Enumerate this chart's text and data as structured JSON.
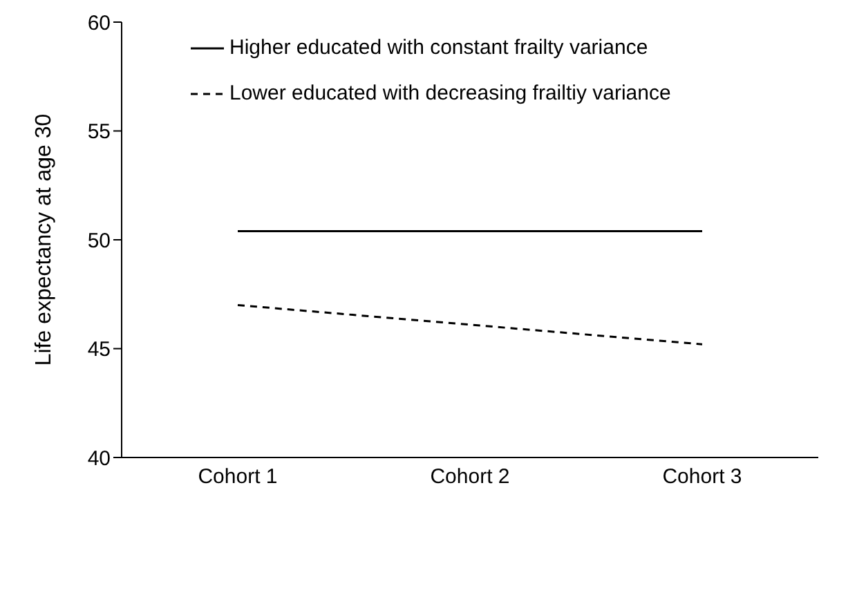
{
  "chart_data": {
    "type": "line",
    "ylabel": "Life expectancy at age 30",
    "categories": [
      "Cohort 1",
      "Cohort 2",
      "Cohort 3"
    ],
    "series": [
      {
        "name": "Higher educated with constant frailty variance",
        "color": "#000000",
        "line_style": "solid",
        "values": [
          50.4,
          50.4,
          50.4
        ]
      },
      {
        "name": "Lower educated with decreasing frailtiy variance",
        "color": "#000000",
        "line_style": "dashed",
        "values": [
          47.0,
          46.1,
          45.2
        ]
      }
    ],
    "ylim": [
      40,
      60
    ],
    "yticks": [
      40,
      45,
      50,
      55,
      60
    ],
    "grid": false,
    "legend": "top left",
    "marker": "none"
  }
}
